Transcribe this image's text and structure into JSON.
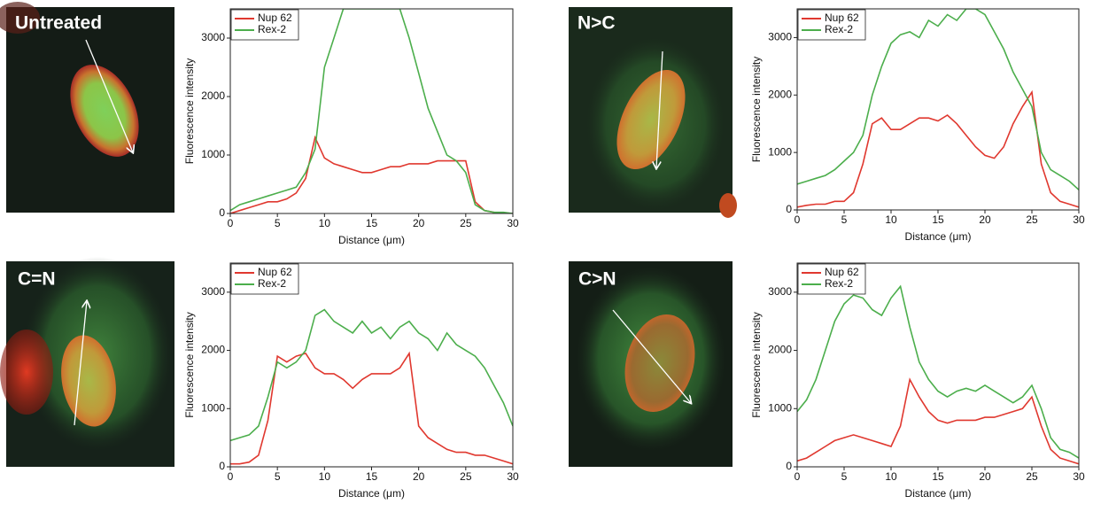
{
  "chart_data": [
    {
      "type": "line",
      "panel_label": "Untreated",
      "x_label": "Distance (μm)",
      "y_label": "Fluorescence intensity",
      "legend": "upper left",
      "x": [
        0,
        1,
        2,
        3,
        4,
        5,
        6,
        7,
        8,
        9,
        10,
        11,
        12,
        13,
        14,
        15,
        16,
        17,
        18,
        19,
        20,
        21,
        22,
        23,
        24,
        25,
        26,
        27,
        28,
        29,
        30
      ],
      "series": [
        {
          "name": "Nup 62",
          "color": "#e0382f",
          "values": [
            0,
            50,
            100,
            150,
            200,
            200,
            250,
            350,
            600,
            1300,
            950,
            850,
            800,
            750,
            700,
            700,
            750,
            800,
            800,
            850,
            850,
            850,
            900,
            900,
            900,
            900,
            200,
            50,
            20,
            10,
            0
          ]
        },
        {
          "name": "Rex-2",
          "color": "#4cae4c",
          "values": [
            50,
            150,
            200,
            250,
            300,
            350,
            400,
            450,
            700,
            1100,
            2500,
            3000,
            3500,
            3500,
            3500,
            3500,
            3500,
            3500,
            3500,
            3000,
            2400,
            1800,
            1400,
            1000,
            900,
            700,
            150,
            50,
            20,
            20,
            0
          ]
        }
      ],
      "xlim": [
        0,
        30
      ],
      "xticks": [
        0,
        5,
        10,
        15,
        20,
        25,
        30
      ],
      "ylim": [
        0,
        3500
      ],
      "yticks": [
        0,
        1000,
        2000,
        3000
      ]
    },
    {
      "type": "line",
      "panel_label": "N>C",
      "x_label": "Distance (μm)",
      "y_label": "Fluorescence intensity",
      "legend": "upper left",
      "x": [
        0,
        1,
        2,
        3,
        4,
        5,
        6,
        7,
        8,
        9,
        10,
        11,
        12,
        13,
        14,
        15,
        16,
        17,
        18,
        19,
        20,
        21,
        22,
        23,
        24,
        25,
        26,
        27,
        28,
        29,
        30
      ],
      "series": [
        {
          "name": "Nup 62",
          "color": "#e0382f",
          "values": [
            50,
            80,
            100,
            100,
            150,
            150,
            300,
            800,
            1500,
            1600,
            1400,
            1400,
            1500,
            1600,
            1600,
            1550,
            1650,
            1500,
            1300,
            1100,
            950,
            900,
            1100,
            1500,
            1800,
            2050,
            800,
            300,
            150,
            100,
            50
          ]
        },
        {
          "name": "Rex-2",
          "color": "#4cae4c",
          "values": [
            450,
            500,
            550,
            600,
            700,
            850,
            1000,
            1300,
            2000,
            2500,
            2900,
            3050,
            3100,
            3000,
            3300,
            3200,
            3400,
            3300,
            3500,
            3500,
            3400,
            3100,
            2800,
            2400,
            2100,
            1800,
            1000,
            700,
            600,
            500,
            350
          ]
        }
      ],
      "xlim": [
        0,
        30
      ],
      "xticks": [
        0,
        5,
        10,
        15,
        20,
        25,
        30
      ],
      "ylim": [
        0,
        3500
      ],
      "yticks": [
        0,
        1000,
        2000,
        3000
      ]
    },
    {
      "type": "line",
      "panel_label": "C=N",
      "x_label": "Distance (μm)",
      "y_label": "Fluorescence intensity",
      "legend": "upper left",
      "x": [
        0,
        1,
        2,
        3,
        4,
        5,
        6,
        7,
        8,
        9,
        10,
        11,
        12,
        13,
        14,
        15,
        16,
        17,
        18,
        19,
        20,
        21,
        22,
        23,
        24,
        25,
        26,
        27,
        28,
        29,
        30
      ],
      "series": [
        {
          "name": "Nup 62",
          "color": "#e0382f",
          "values": [
            50,
            50,
            80,
            200,
            800,
            1900,
            1800,
            1900,
            1950,
            1700,
            1600,
            1600,
            1500,
            1350,
            1500,
            1600,
            1600,
            1600,
            1700,
            1950,
            700,
            500,
            400,
            300,
            250,
            250,
            200,
            200,
            150,
            100,
            50
          ]
        },
        {
          "name": "Rex-2",
          "color": "#4cae4c",
          "values": [
            450,
            500,
            550,
            700,
            1200,
            1800,
            1700,
            1800,
            2000,
            2600,
            2700,
            2500,
            2400,
            2300,
            2500,
            2300,
            2400,
            2200,
            2400,
            2500,
            2300,
            2200,
            2000,
            2300,
            2100,
            2000,
            1900,
            1700,
            1400,
            1100,
            700
          ]
        }
      ],
      "xlim": [
        0,
        30
      ],
      "xticks": [
        0,
        5,
        10,
        15,
        20,
        25,
        30
      ],
      "ylim": [
        0,
        3500
      ],
      "yticks": [
        0,
        1000,
        2000,
        3000
      ]
    },
    {
      "type": "line",
      "panel_label": "C>N",
      "x_label": "Distance (μm)",
      "y_label": "Fluorescence intensity",
      "legend": "upper left",
      "x": [
        0,
        1,
        2,
        3,
        4,
        5,
        6,
        7,
        8,
        9,
        10,
        11,
        12,
        13,
        14,
        15,
        16,
        17,
        18,
        19,
        20,
        21,
        22,
        23,
        24,
        25,
        26,
        27,
        28,
        29,
        30
      ],
      "series": [
        {
          "name": "Nup 62",
          "color": "#e0382f",
          "values": [
            100,
            150,
            250,
            350,
            450,
            500,
            550,
            500,
            450,
            400,
            350,
            700,
            1500,
            1200,
            950,
            800,
            750,
            800,
            800,
            800,
            850,
            850,
            900,
            950,
            1000,
            1200,
            700,
            300,
            150,
            100,
            50
          ]
        },
        {
          "name": "Rex-2",
          "color": "#4cae4c",
          "values": [
            950,
            1150,
            1500,
            2000,
            2500,
            2800,
            2950,
            2900,
            2700,
            2600,
            2900,
            3100,
            2400,
            1800,
            1500,
            1300,
            1200,
            1300,
            1350,
            1300,
            1400,
            1300,
            1200,
            1100,
            1200,
            1400,
            1000,
            500,
            300,
            250,
            150
          ]
        }
      ],
      "xlim": [
        0,
        30
      ],
      "xticks": [
        0,
        5,
        10,
        15,
        20,
        25,
        30
      ],
      "ylim": [
        0,
        3500
      ],
      "yticks": [
        0,
        1000,
        2000,
        3000
      ]
    }
  ]
}
